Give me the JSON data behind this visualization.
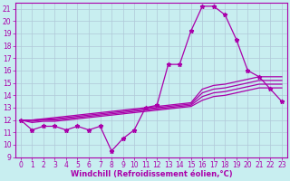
{
  "xlabel": "Windchill (Refroidissement éolien,°C)",
  "bg_color": "#c8eef0",
  "line_color": "#aa00aa",
  "grid_color": "#b0c8d8",
  "xlim": [
    -0.5,
    23.5
  ],
  "ylim": [
    9,
    21.5
  ],
  "xticks": [
    0,
    1,
    2,
    3,
    4,
    5,
    6,
    7,
    8,
    9,
    10,
    11,
    12,
    13,
    14,
    15,
    16,
    17,
    18,
    19,
    20,
    21,
    22,
    23
  ],
  "yticks": [
    9,
    10,
    11,
    12,
    13,
    14,
    15,
    16,
    17,
    18,
    19,
    20,
    21
  ],
  "main_y": [
    12,
    11.2,
    11.5,
    11.5,
    11.2,
    11.5,
    11.2,
    11.5,
    9.5,
    10.5,
    11.2,
    13.0,
    13.2,
    16.5,
    16.5,
    19.2,
    21.2,
    21.2,
    20.5,
    18.5,
    16.0,
    15.5,
    14.5,
    13.5
  ],
  "line1_y": [
    12.0,
    12.0,
    12.1,
    12.2,
    12.3,
    12.4,
    12.5,
    12.6,
    12.7,
    12.8,
    12.9,
    13.0,
    13.1,
    13.2,
    13.3,
    13.4,
    14.5,
    14.8,
    14.9,
    15.1,
    15.3,
    15.5,
    15.5,
    15.5
  ],
  "line2_y": [
    12.0,
    12.0,
    12.05,
    12.1,
    12.2,
    12.3,
    12.4,
    12.5,
    12.6,
    12.7,
    12.8,
    12.9,
    13.0,
    13.1,
    13.2,
    13.3,
    14.2,
    14.5,
    14.6,
    14.8,
    15.0,
    15.2,
    15.2,
    15.2
  ],
  "line3_y": [
    12.0,
    11.9,
    12.0,
    12.0,
    12.1,
    12.2,
    12.3,
    12.4,
    12.5,
    12.6,
    12.7,
    12.8,
    12.9,
    13.0,
    13.1,
    13.2,
    13.9,
    14.2,
    14.3,
    14.5,
    14.7,
    14.9,
    14.9,
    14.9
  ],
  "line4_y": [
    12.0,
    11.8,
    11.9,
    11.9,
    12.0,
    12.1,
    12.2,
    12.3,
    12.4,
    12.5,
    12.6,
    12.7,
    12.8,
    12.9,
    13.0,
    13.1,
    13.6,
    13.9,
    14.0,
    14.2,
    14.4,
    14.6,
    14.6,
    14.6
  ],
  "marker": "*",
  "markersize": 3.5,
  "tick_fontsize": 5.5,
  "xlabel_fontsize": 6.0
}
